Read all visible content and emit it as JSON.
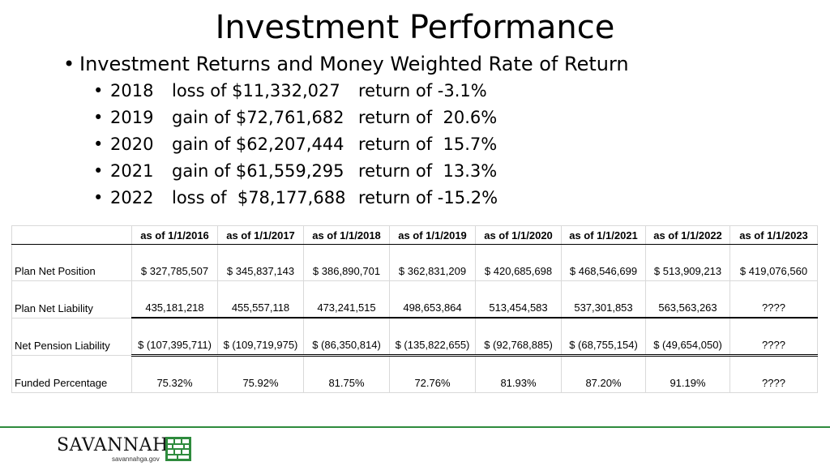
{
  "title": "Investment Performance",
  "main_bullet": "Investment Returns and Money Weighted Rate of Return",
  "returns": [
    {
      "year": "2018",
      "amount": "loss of $11,332,027",
      "rate": "return of -3.1%"
    },
    {
      "year": "2019",
      "amount": "gain of $72,761,682",
      "rate": "return of  20.6%"
    },
    {
      "year": "2020",
      "amount": "gain of $62,207,444",
      "rate": "return of  15.7%"
    },
    {
      "year": "2021",
      "amount": "gain of $61,559,295",
      "rate": "return of  13.3%"
    },
    {
      "year": "2022",
      "amount": "loss of  $78,177,688",
      "rate": "return of -15.2%"
    }
  ],
  "table": {
    "headers": [
      "as of 1/1/2016",
      "as of 1/1/2017",
      "as of 1/1/2018",
      "as of 1/1/2019",
      "as of 1/1/2020",
      "as of 1/1/2021",
      "as of 1/1/2022",
      "as of 1/1/2023"
    ],
    "rows": [
      {
        "label": "Plan Net Position",
        "values": [
          "$  327,785,507",
          "$  345,837,143",
          "$ 386,890,701",
          "$  362,831,209",
          "$ 420,685,698",
          "$ 468,546,699",
          "$ 513,909,213",
          "$  419,076,560"
        ]
      },
      {
        "label": "Plan Net Liability",
        "values": [
          "435,181,218",
          "455,557,118",
          "473,241,515",
          "498,653,864",
          "513,454,583",
          "537,301,853",
          "563,563,263",
          "????"
        ]
      },
      {
        "label": "Net Pension Liability",
        "values": [
          "$ (107,395,711)",
          "$ (109,719,975)",
          "$  (86,350,814)",
          "$ (135,822,655)",
          "$  (92,768,885)",
          "$  (68,755,154)",
          "$  (49,654,050)",
          "????"
        ]
      },
      {
        "label": "Funded Percentage",
        "values": [
          "75.32%",
          "75.92%",
          "81.75%",
          "72.76%",
          "81.93%",
          "87.20%",
          "91.19%",
          "????"
        ]
      }
    ]
  },
  "footer": {
    "logo_text": "SAVANNAH",
    "logo_sub": "savannahga.gov",
    "accent": "#2e8b3d"
  }
}
